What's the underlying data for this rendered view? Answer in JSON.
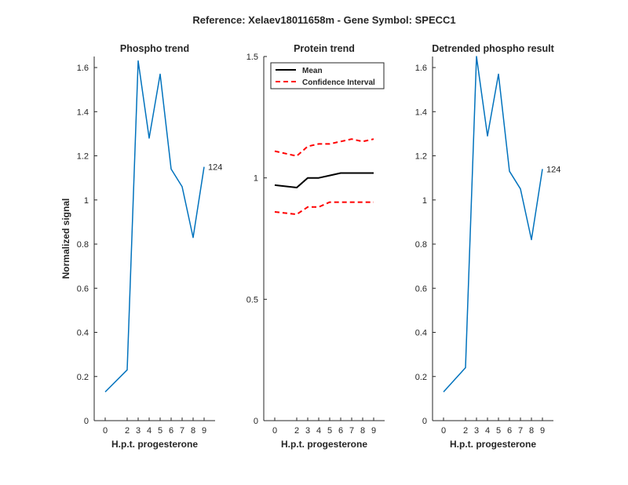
{
  "figure": {
    "title": "Reference:  Xelaev18011658m - Gene Symbol:  SPECC1"
  },
  "chart_data": [
    {
      "type": "line",
      "title": "Phospho trend",
      "xlabel": "H.p.t. progesterone",
      "ylabel": "Normalized signal",
      "x_ticks": [
        "0",
        "2",
        "3",
        "4",
        "5",
        "6",
        "7",
        "8",
        "9"
      ],
      "x": [
        0,
        2,
        3,
        4,
        5,
        6,
        7,
        8,
        9
      ],
      "y_ticks": [
        "0",
        "0.2",
        "0.4",
        "0.6",
        "0.8",
        "1",
        "1.2",
        "1.4",
        "1.6"
      ],
      "y_tick_values": [
        0,
        0.2,
        0.4,
        0.6,
        0.8,
        1,
        1.2,
        1.4,
        1.6
      ],
      "ylim": [
        0,
        1.65
      ],
      "series": [
        {
          "values": [
            0.13,
            0.23,
            1.63,
            1.28,
            1.57,
            1.14,
            1.06,
            0.83,
            1.15
          ],
          "color": "#0072BD",
          "style": "solid"
        }
      ],
      "annotation": "124",
      "grid": false
    },
    {
      "type": "line",
      "title": "Protein trend",
      "xlabel": "H.p.t. progesterone",
      "ylabel": "",
      "x_ticks": [
        "0",
        "2",
        "3",
        "4",
        "5",
        "6",
        "7",
        "8",
        "9"
      ],
      "x": [
        0,
        2,
        3,
        4,
        5,
        6,
        7,
        8,
        9
      ],
      "y_ticks": [
        "0",
        "0.5",
        "1",
        "1.5"
      ],
      "y_tick_values": [
        0,
        0.5,
        1,
        1.5
      ],
      "ylim": [
        0,
        1.5
      ],
      "series": [
        {
          "name": "Mean",
          "values": [
            0.97,
            0.96,
            1.0,
            1.0,
            1.01,
            1.02,
            1.02,
            1.02,
            1.02
          ],
          "color": "#000000",
          "style": "solid"
        },
        {
          "name": "Confidence Interval",
          "values": [
            1.11,
            1.09,
            1.13,
            1.14,
            1.14,
            1.15,
            1.16,
            1.15,
            1.16
          ],
          "color": "#FF0000",
          "style": "dashed"
        },
        {
          "values": [
            0.86,
            0.85,
            0.88,
            0.88,
            0.9,
            0.9,
            0.9,
            0.9,
            0.9
          ],
          "color": "#FF0000",
          "style": "dashed"
        }
      ],
      "legend": {
        "placement": "top-left",
        "entries": [
          "Mean",
          "Confidence Interval"
        ]
      },
      "grid": false
    },
    {
      "type": "line",
      "title": "Detrended phospho result",
      "xlabel": "H.p.t. progesterone",
      "ylabel": "",
      "x_ticks": [
        "0",
        "2",
        "3",
        "4",
        "5",
        "6",
        "7",
        "8",
        "9"
      ],
      "x": [
        0,
        2,
        3,
        4,
        5,
        6,
        7,
        8,
        9
      ],
      "y_ticks": [
        "0",
        "0.2",
        "0.4",
        "0.6",
        "0.8",
        "1",
        "1.2",
        "1.4",
        "1.6"
      ],
      "y_tick_values": [
        0,
        0.2,
        0.4,
        0.6,
        0.8,
        1,
        1.2,
        1.4,
        1.6
      ],
      "ylim": [
        0,
        1.65
      ],
      "series": [
        {
          "values": [
            0.13,
            0.24,
            1.65,
            1.29,
            1.57,
            1.13,
            1.05,
            0.82,
            1.14
          ],
          "color": "#0072BD",
          "style": "solid"
        }
      ],
      "annotation": "124",
      "grid": false
    }
  ]
}
